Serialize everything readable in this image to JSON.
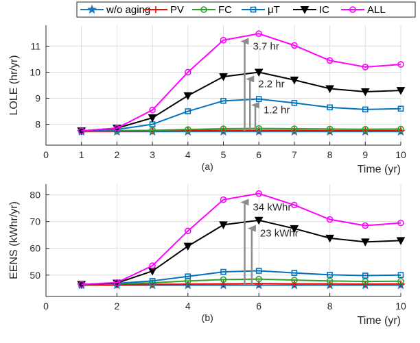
{
  "legend": {
    "placement": "top",
    "entries": [
      {
        "name": "w/o aging",
        "color": "#1f77b4",
        "marker": "star"
      },
      {
        "name": "PV",
        "color": "#ff0000",
        "marker": "plus"
      },
      {
        "name": "FC",
        "color": "#2ca02c",
        "marker": "circle"
      },
      {
        "name": "μT",
        "color": "#0072bd",
        "marker": "square"
      },
      {
        "name": "IC",
        "color": "#000000",
        "marker": "triangle-down"
      },
      {
        "name": "ALL",
        "color": "#ff00ff",
        "marker": "circle"
      }
    ]
  },
  "chart_data": [
    {
      "type": "line",
      "subtitle": "(a)",
      "xlabel": "Time (yr)",
      "ylabel": "LOLE (hr/yr)",
      "xlim": [
        0,
        10
      ],
      "ylim": [
        7.2,
        11.8
      ],
      "xticks": [
        0,
        1,
        2,
        3,
        4,
        5,
        6,
        7,
        8,
        9,
        10
      ],
      "yticks": [
        8,
        9,
        10,
        11
      ],
      "x": [
        1,
        2,
        3,
        4,
        5,
        6,
        7,
        8,
        9,
        10
      ],
      "series": [
        {
          "name": "w/o aging",
          "values": [
            7.72,
            7.72,
            7.72,
            7.72,
            7.72,
            7.72,
            7.72,
            7.72,
            7.72,
            7.72
          ]
        },
        {
          "name": "PV",
          "values": [
            7.73,
            7.74,
            7.75,
            7.76,
            7.77,
            7.77,
            7.77,
            7.76,
            7.76,
            7.76
          ]
        },
        {
          "name": "FC",
          "values": [
            7.74,
            7.76,
            7.77,
            7.8,
            7.83,
            7.84,
            7.83,
            7.82,
            7.81,
            7.82
          ]
        },
        {
          "name": "μT",
          "values": [
            7.75,
            7.8,
            8.0,
            8.5,
            8.9,
            8.97,
            8.82,
            8.65,
            8.57,
            8.6
          ]
        },
        {
          "name": "IC",
          "values": [
            7.75,
            7.85,
            8.25,
            9.1,
            9.83,
            10.0,
            9.7,
            9.37,
            9.25,
            9.3
          ]
        },
        {
          "name": "ALL",
          "values": [
            7.75,
            7.85,
            8.55,
            10.0,
            11.23,
            11.48,
            11.03,
            10.45,
            10.2,
            10.3
          ]
        }
      ],
      "annotations": [
        {
          "text": "3.7 hr",
          "x": 5.6,
          "y_from": 7.75,
          "y_to": 11.45
        },
        {
          "text": "2.2 hr",
          "x": 5.75,
          "y_from": 7.78,
          "y_to": 10.0
        },
        {
          "text": "1.2 hr",
          "x": 5.9,
          "y_from": 7.8,
          "y_to": 9.0
        }
      ]
    },
    {
      "type": "line",
      "subtitle": "(b)",
      "xlabel": "Time (yr)",
      "ylabel": "EENS (kWhr/yr)",
      "xlim": [
        0,
        10
      ],
      "ylim": [
        42,
        84
      ],
      "xticks": [
        0,
        2,
        4,
        6,
        8,
        10
      ],
      "yticks": [
        50,
        60,
        70,
        80
      ],
      "x": [
        1,
        2,
        3,
        4,
        5,
        6,
        7,
        8,
        9,
        10
      ],
      "series": [
        {
          "name": "w/o aging",
          "values": [
            46.2,
            46.2,
            46.2,
            46.2,
            46.2,
            46.2,
            46.2,
            46.2,
            46.2,
            46.2
          ]
        },
        {
          "name": "PV",
          "values": [
            46.3,
            46.4,
            46.5,
            46.6,
            46.7,
            46.8,
            46.7,
            46.7,
            46.6,
            46.7
          ]
        },
        {
          "name": "FC",
          "values": [
            46.4,
            46.7,
            47.1,
            47.8,
            48.3,
            48.5,
            48.1,
            47.8,
            47.6,
            47.7
          ]
        },
        {
          "name": "μT",
          "values": [
            46.5,
            46.9,
            47.8,
            49.5,
            51.2,
            51.6,
            50.8,
            50.1,
            49.8,
            50.0
          ]
        },
        {
          "name": "IC",
          "values": [
            46.5,
            47.0,
            51.5,
            60.8,
            68.8,
            70.5,
            67.4,
            63.8,
            62.4,
            62.9
          ]
        },
        {
          "name": "ALL",
          "values": [
            46.5,
            47.2,
            53.5,
            66.5,
            78.2,
            80.5,
            76.2,
            70.8,
            68.5,
            69.5
          ]
        }
      ],
      "annotations": [
        {
          "text": "34 kWhr",
          "x": 5.6,
          "y_from": 46.3,
          "y_to": 79.8
        },
        {
          "text": "23 kWhr",
          "x": 5.8,
          "y_from": 46.5,
          "y_to": 70.0
        }
      ]
    }
  ]
}
